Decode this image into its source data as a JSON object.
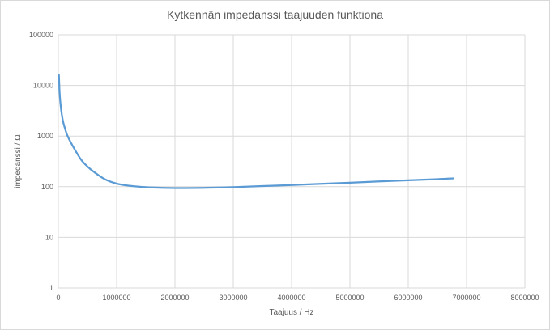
{
  "chart_data": {
    "type": "line",
    "title": "Kytkennän impedanssi taajuuden funktiona",
    "xlabel": "Taajuus / Hz",
    "ylabel": "impedanssi  /  Ω",
    "xlim": [
      0,
      8000000
    ],
    "ylim": [
      1,
      100000
    ],
    "y_scale": "log",
    "grid": true,
    "legend": "none",
    "x_ticks": [
      0,
      1000000,
      2000000,
      3000000,
      4000000,
      5000000,
      6000000,
      7000000,
      8000000
    ],
    "x_tick_labels": [
      "0",
      "1000000",
      "2000000",
      "3000000",
      "4000000",
      "5000000",
      "6000000",
      "7000000",
      "8000000"
    ],
    "y_ticks": [
      1,
      10,
      100,
      1000,
      10000,
      100000
    ],
    "y_tick_labels": [
      "1",
      "10",
      "100",
      "1000",
      "10000",
      "100000"
    ],
    "series": [
      {
        "color": "#5b9bd5",
        "x": [
          10000,
          20000,
          30000,
          50000,
          75000,
          100000,
          150000,
          200000,
          300000,
          400000,
          500000,
          600000,
          800000,
          1000000,
          1200000,
          1500000,
          1800000,
          2000000,
          2200000,
          2500000,
          3000000,
          3500000,
          4000000,
          4500000,
          5000000,
          5500000,
          6000000,
          6500000,
          6770000
        ],
        "y": [
          16000,
          8000,
          5300,
          3200,
          2100,
          1600,
          1060,
          800,
          500,
          330,
          250,
          200,
          140,
          115,
          105,
          98,
          95,
          94,
          94,
          95,
          98,
          103,
          108,
          114,
          120,
          127,
          134,
          141,
          146
        ]
      }
    ]
  },
  "colors": {
    "grid": "#d9d9d9",
    "series": "#5b9bd5",
    "text": "#595959"
  }
}
